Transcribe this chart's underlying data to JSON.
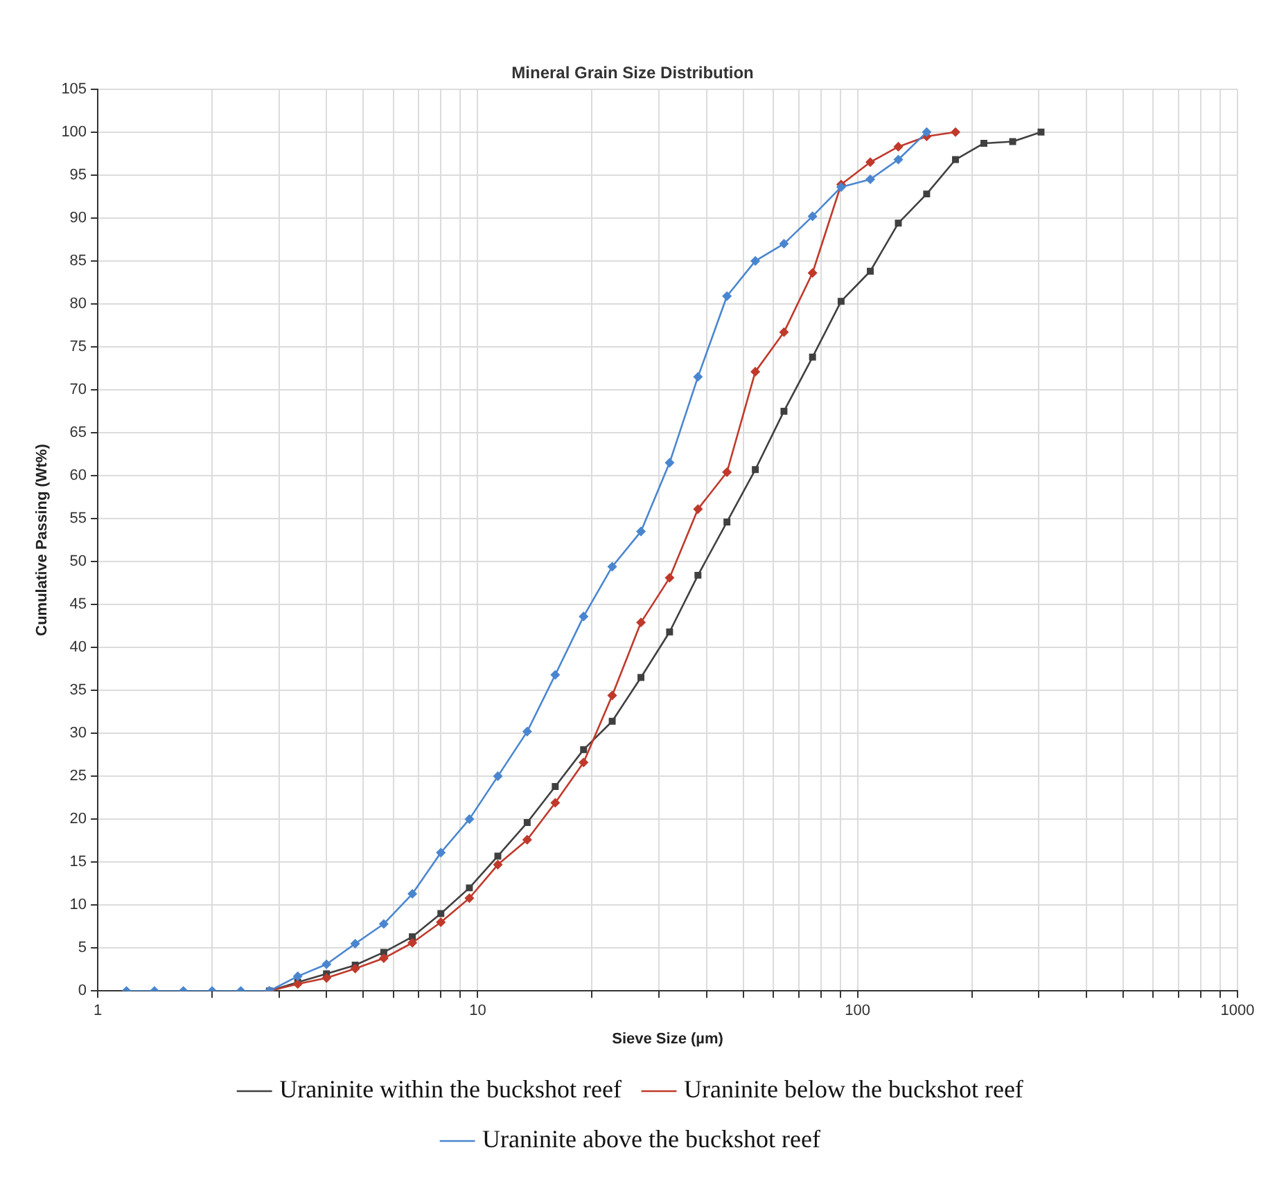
{
  "chart_data": {
    "type": "line",
    "title": "Mineral Grain Size Distribution",
    "xlabel": "Sieve Size (µm)",
    "ylabel": "Cumulative Passing (Wt%)",
    "log": "x",
    "grid": true,
    "legend": "bottom",
    "line_style": "solid",
    "xlim": [
      1,
      1000
    ],
    "ylim": [
      0,
      105
    ],
    "xticks": [
      1,
      {
        "value": 2,
        "label": null
      },
      {
        "value": 3,
        "label": null
      },
      {
        "value": 4,
        "label": null
      },
      {
        "value": 5,
        "label": null
      },
      {
        "value": 6,
        "label": null
      },
      {
        "value": 7,
        "label": null
      },
      {
        "value": 8,
        "label": null
      },
      {
        "value": 9,
        "label": null
      },
      10,
      {
        "value": 20,
        "label": null
      },
      {
        "value": 30,
        "label": null
      },
      {
        "value": 40,
        "label": null
      },
      {
        "value": 50,
        "label": null
      },
      {
        "value": 60,
        "label": null
      },
      {
        "value": 70,
        "label": null
      },
      {
        "value": 80,
        "label": null
      },
      {
        "value": 90,
        "label": null
      },
      100,
      {
        "value": 200,
        "label": null
      },
      {
        "value": 300,
        "label": null
      },
      {
        "value": 400,
        "label": null
      },
      {
        "value": 500,
        "label": null
      },
      {
        "value": 600,
        "label": null
      },
      {
        "value": 700,
        "label": null
      },
      {
        "value": 800,
        "label": null
      },
      {
        "value": 900,
        "label": null
      },
      1000
    ],
    "yticks": [
      0,
      5,
      10,
      15,
      20,
      25,
      30,
      35,
      40,
      45,
      50,
      55,
      60,
      65,
      70,
      75,
      80,
      85,
      90,
      95,
      100,
      105
    ],
    "x": [
      1.19,
      1.41,
      1.68,
      2,
      2.38,
      2.83,
      3.36,
      4,
      4.76,
      5.66,
      6.73,
      8,
      9.51,
      11.3,
      13.5,
      16,
      19,
      22.6,
      26.9,
      32,
      38,
      45.3,
      53.8,
      64,
      76.1,
      90.5,
      108,
      128,
      152,
      181,
      215,
      256,
      304
    ],
    "series": [
      {
        "name": "Uraninite within the buckshot reef",
        "color": "#404040",
        "marker": "square",
        "values": [
          null,
          null,
          null,
          null,
          null,
          0,
          1.0,
          2.0,
          3.0,
          4.5,
          6.3,
          9.0,
          12.0,
          15.7,
          19.6,
          23.8,
          28.1,
          31.4,
          36.5,
          41.8,
          48.4,
          54.6,
          60.7,
          67.5,
          73.8,
          80.3,
          83.8,
          89.4,
          92.8,
          96.8,
          98.7,
          98.9,
          100
        ]
      },
      {
        "name": "Uraninite below the buckshot reef",
        "color": "#c0392b",
        "marker": "diamond",
        "values": [
          null,
          null,
          null,
          null,
          null,
          0,
          0.8,
          1.5,
          2.6,
          3.8,
          5.6,
          8.0,
          10.8,
          14.7,
          17.6,
          21.9,
          26.6,
          34.4,
          42.9,
          48.1,
          56.1,
          60.4,
          72.1,
          76.7,
          83.6,
          93.9,
          96.5,
          98.3,
          99.5,
          100,
          null,
          null,
          null
        ]
      },
      {
        "name": "Uraninite above the buckshot reef",
        "color": "#4a86d0",
        "marker": "diamond",
        "values": [
          0,
          0,
          0,
          0,
          0,
          0,
          1.7,
          3.1,
          5.5,
          7.8,
          11.3,
          16.1,
          20.0,
          25.0,
          30.2,
          36.8,
          43.6,
          49.4,
          53.5,
          61.5,
          71.5,
          80.9,
          85.0,
          87.0,
          90.2,
          93.6,
          94.5,
          96.8,
          100,
          null,
          null,
          null,
          null
        ]
      }
    ]
  }
}
